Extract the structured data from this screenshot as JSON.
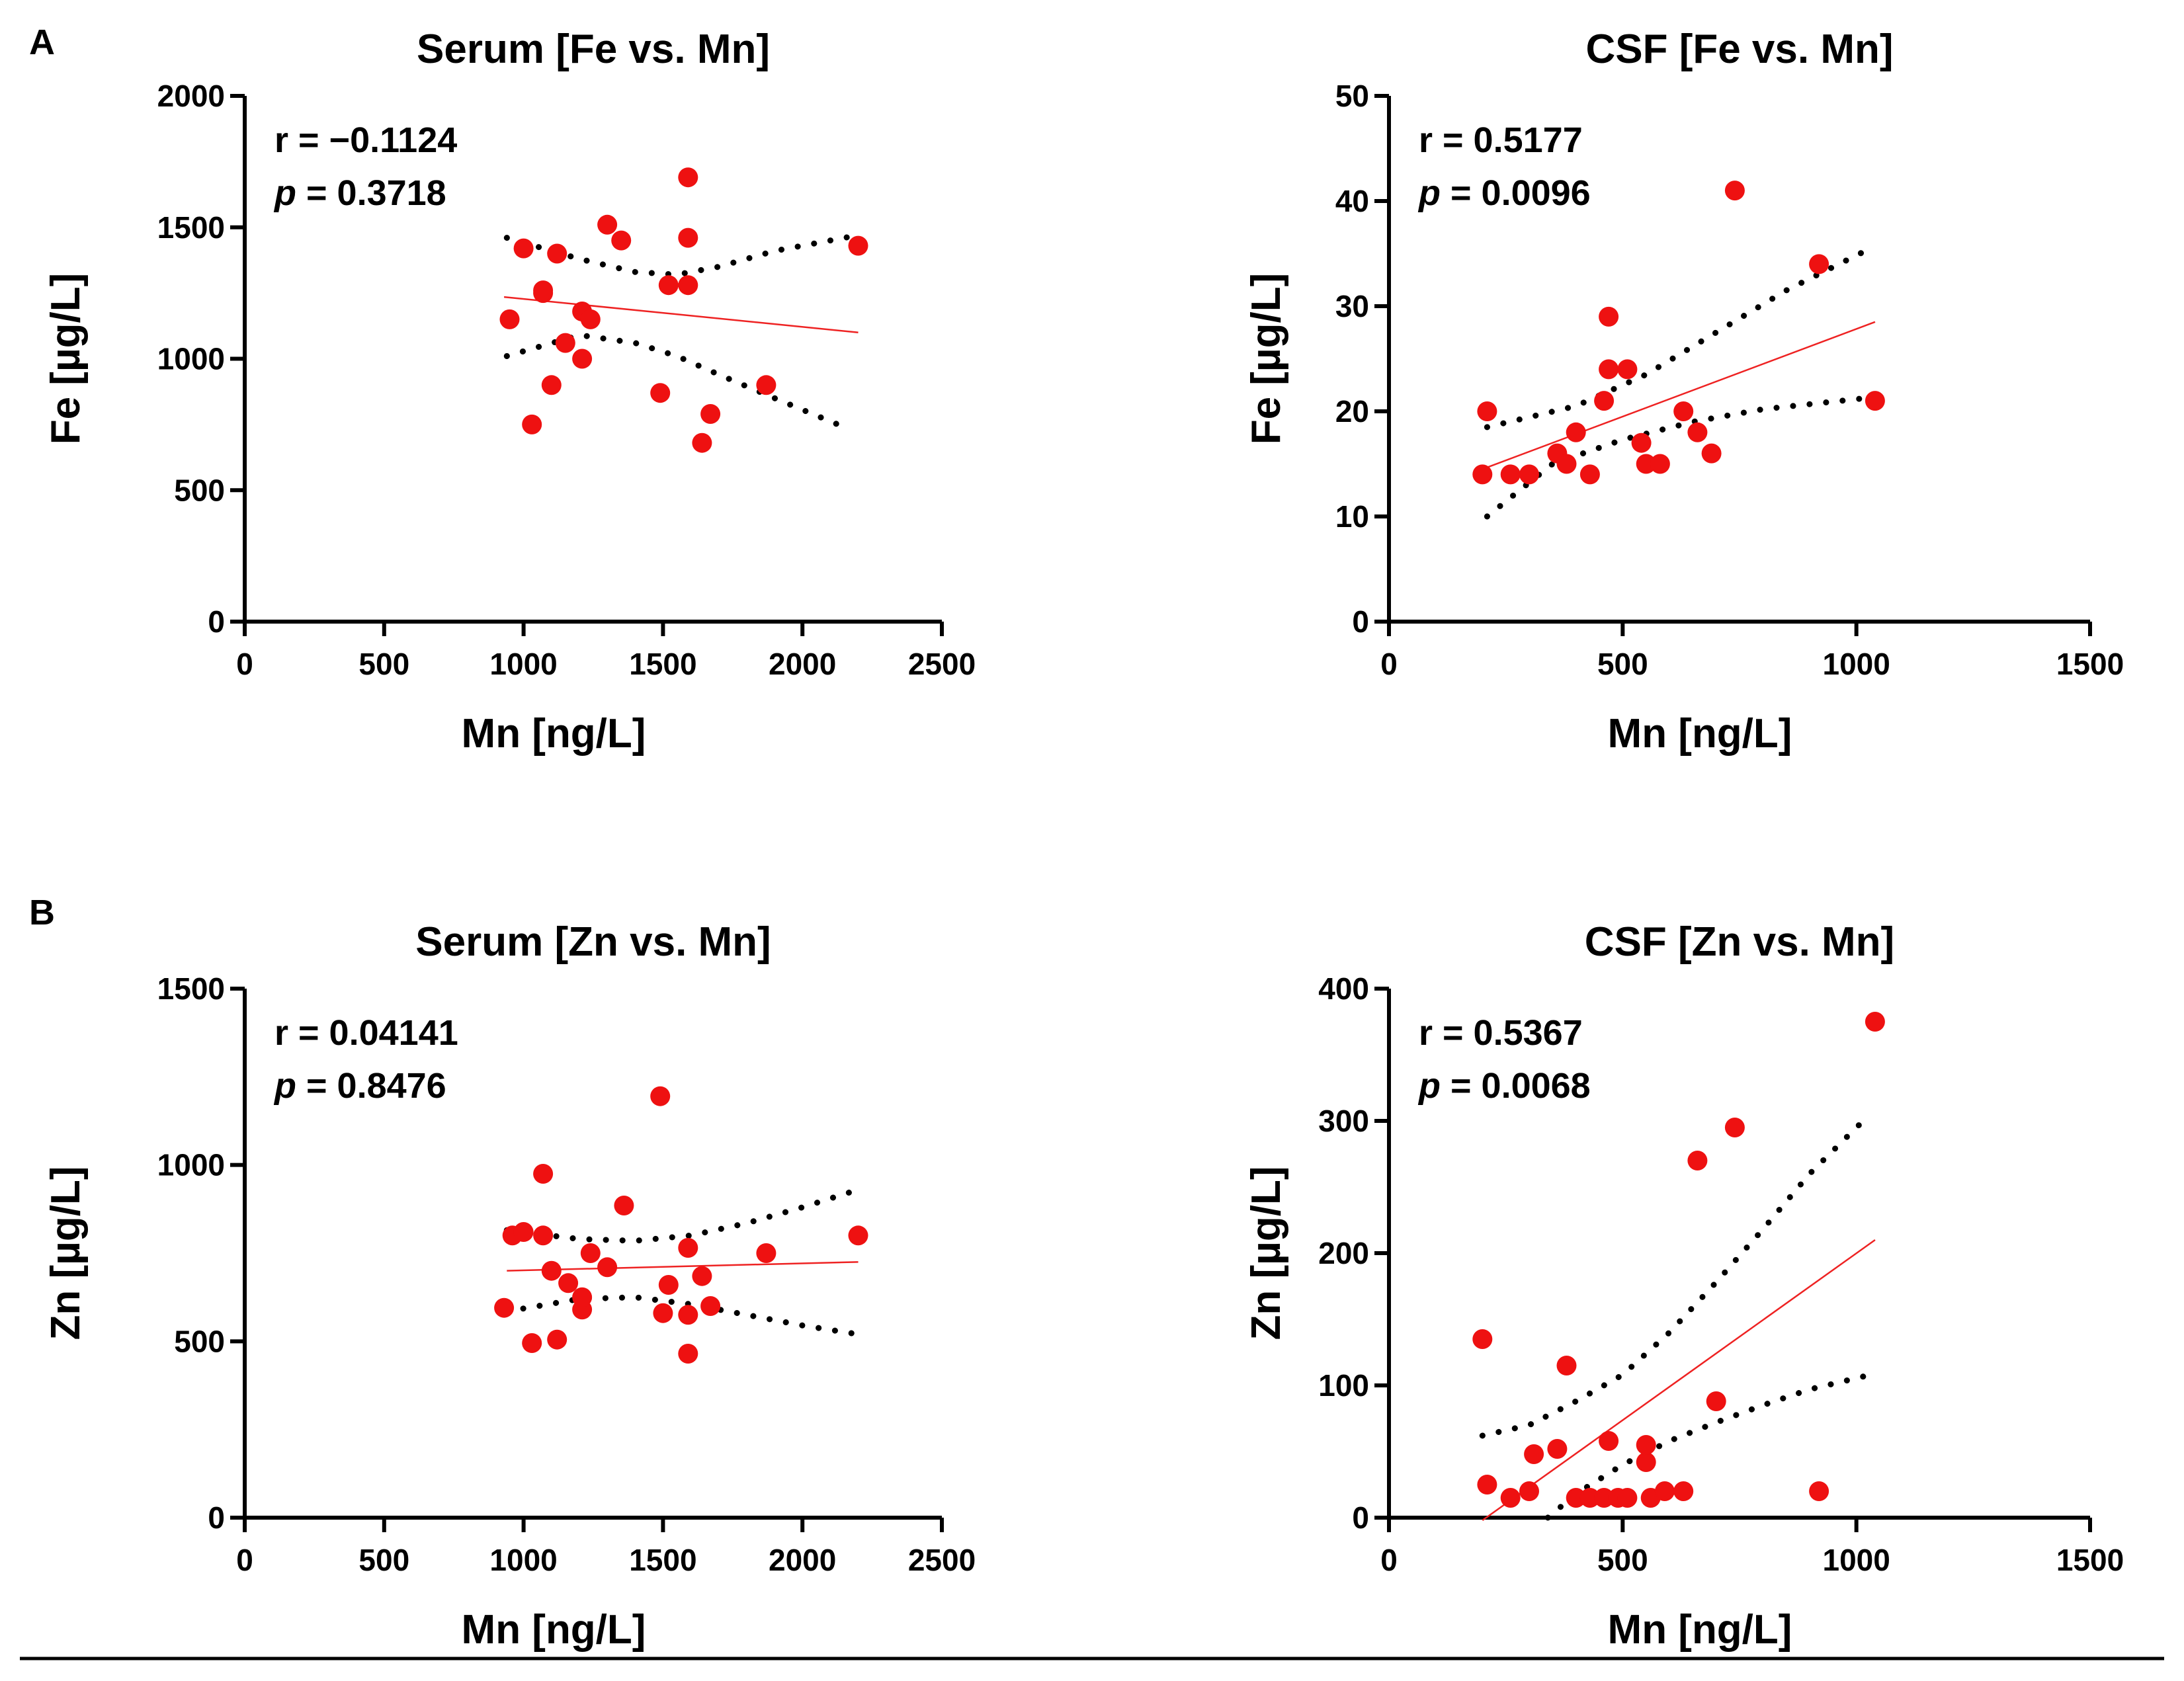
{
  "figure": {
    "panel_letters": [
      "A",
      "B"
    ],
    "accent_color": "#ee1111"
  },
  "chart_data": [
    {
      "type": "scatter",
      "title": "Serum [Fe vs. Mn]",
      "xlabel": "Mn [ng/L]",
      "ylabel": "Fe [µg/L]",
      "xlim": [
        0,
        2500
      ],
      "ylim": [
        0,
        2000
      ],
      "xticks": [
        0,
        500,
        1000,
        1500,
        2000,
        2500
      ],
      "yticks": [
        0,
        500,
        1000,
        1500,
        2000
      ],
      "stats": {
        "r_label": "r = −0.1124",
        "p_label": "p",
        "p_value": " = 0.3718"
      },
      "points": [
        [
          950,
          1150
        ],
        [
          1000,
          1420
        ],
        [
          1030,
          750
        ],
        [
          1070,
          1250
        ],
        [
          1070,
          1260
        ],
        [
          1100,
          900
        ],
        [
          1120,
          1400
        ],
        [
          1150,
          1060
        ],
        [
          1210,
          1180
        ],
        [
          1210,
          1000
        ],
        [
          1240,
          1150
        ],
        [
          1300,
          1510
        ],
        [
          1350,
          1450
        ],
        [
          1490,
          870
        ],
        [
          1520,
          1280
        ],
        [
          1590,
          1460
        ],
        [
          1590,
          1280
        ],
        [
          1590,
          1690
        ],
        [
          1640,
          680
        ],
        [
          1670,
          790
        ],
        [
          1870,
          900
        ],
        [
          2200,
          1430
        ]
      ],
      "fit": {
        "x": [
          930,
          2200
        ],
        "y": [
          1235,
          1100
        ]
      },
      "ci_upper": {
        "x": [
          940,
          1200,
          1400,
          1550,
          1700,
          1900,
          2200
        ],
        "y": [
          1460,
          1380,
          1330,
          1320,
          1350,
          1410,
          1470
        ]
      },
      "ci_lower": {
        "x": [
          940,
          1200,
          1400,
          1550,
          1700,
          1900,
          2150
        ],
        "y": [
          1010,
          1090,
          1060,
          1010,
          940,
          850,
          740
        ]
      }
    },
    {
      "type": "scatter",
      "title": "CSF [Fe vs. Mn]",
      "xlabel": "Mn [ng/L]",
      "ylabel": "Fe [µg/L]",
      "xlim": [
        0,
        1500
      ],
      "ylim": [
        0,
        50
      ],
      "xticks": [
        0,
        500,
        1000,
        1500
      ],
      "yticks": [
        0,
        10,
        20,
        30,
        40,
        50
      ],
      "stats": {
        "r_label": "r = 0.5177",
        "p_label": "p",
        "p_value": " = 0.0096"
      },
      "points": [
        [
          200,
          14
        ],
        [
          210,
          20
        ],
        [
          260,
          14
        ],
        [
          300,
          14
        ],
        [
          360,
          16
        ],
        [
          380,
          15
        ],
        [
          400,
          18
        ],
        [
          430,
          14
        ],
        [
          460,
          21
        ],
        [
          470,
          29
        ],
        [
          470,
          24
        ],
        [
          510,
          24
        ],
        [
          540,
          17
        ],
        [
          550,
          15
        ],
        [
          580,
          15
        ],
        [
          630,
          20
        ],
        [
          660,
          18
        ],
        [
          690,
          16
        ],
        [
          740,
          41
        ],
        [
          920,
          34
        ],
        [
          1040,
          21
        ]
      ],
      "fit": {
        "x": [
          200,
          1040
        ],
        "y": [
          14.5,
          28.5
        ]
      },
      "ci_upper": {
        "x": [
          210,
          400,
          550,
          700,
          850,
          1030
        ],
        "y": [
          18.5,
          20.5,
          23.5,
          27.5,
          31.5,
          35.5
        ]
      },
      "ci_lower": {
        "x": [
          210,
          350,
          500,
          650,
          800,
          1030
        ],
        "y": [
          10,
          15,
          17.3,
          19,
          20.2,
          21.3
        ]
      }
    },
    {
      "type": "scatter",
      "title": "Serum [Zn vs. Mn]",
      "xlabel": "Mn [ng/L]",
      "ylabel": "Zn [µg/L]",
      "xlim": [
        0,
        2500
      ],
      "ylim": [
        0,
        1500
      ],
      "xticks": [
        0,
        500,
        1000,
        1500,
        2000,
        2500
      ],
      "yticks": [
        0,
        500,
        1000,
        1500
      ],
      "stats": {
        "r_label": "r = 0.04141",
        "p_label": "p",
        "p_value": " = 0.8476"
      },
      "points": [
        [
          930,
          595
        ],
        [
          960,
          800
        ],
        [
          1000,
          810
        ],
        [
          1030,
          495
        ],
        [
          1070,
          800
        ],
        [
          1070,
          975
        ],
        [
          1100,
          700
        ],
        [
          1120,
          505
        ],
        [
          1160,
          665
        ],
        [
          1210,
          590
        ],
        [
          1210,
          625
        ],
        [
          1240,
          750
        ],
        [
          1300,
          710
        ],
        [
          1360,
          885
        ],
        [
          1490,
          1195
        ],
        [
          1500,
          580
        ],
        [
          1520,
          660
        ],
        [
          1590,
          765
        ],
        [
          1590,
          465
        ],
        [
          1590,
          575
        ],
        [
          1640,
          685
        ],
        [
          1670,
          600
        ],
        [
          1870,
          750
        ],
        [
          2200,
          800
        ]
      ],
      "fit": {
        "x": [
          940,
          2200
        ],
        "y": [
          700,
          725
        ]
      },
      "ci_upper": {
        "x": [
          940,
          1200,
          1400,
          1600,
          1800,
          2000,
          2200
        ],
        "y": [
          815,
          790,
          785,
          800,
          835,
          880,
          930
        ]
      },
      "ci_lower": {
        "x": [
          940,
          1200,
          1400,
          1600,
          1800,
          2000,
          2200
        ],
        "y": [
          585,
          620,
          625,
          605,
          575,
          545,
          520
        ]
      }
    },
    {
      "type": "scatter",
      "title": "CSF [Zn vs. Mn]",
      "xlabel": "Mn [ng/L]",
      "ylabel": "Zn [µg/L]",
      "xlim": [
        0,
        1500
      ],
      "ylim": [
        0,
        400
      ],
      "xticks": [
        0,
        500,
        1000,
        1500
      ],
      "yticks": [
        0,
        100,
        200,
        300,
        400
      ],
      "stats": {
        "r_label": "r = 0.5367",
        "p_label": "p",
        "p_value": " = 0.0068"
      },
      "points": [
        [
          200,
          135
        ],
        [
          210,
          25
        ],
        [
          260,
          15
        ],
        [
          300,
          20
        ],
        [
          310,
          48
        ],
        [
          360,
          52
        ],
        [
          380,
          115
        ],
        [
          400,
          15
        ],
        [
          430,
          15
        ],
        [
          460,
          15
        ],
        [
          470,
          58
        ],
        [
          490,
          15
        ],
        [
          510,
          15
        ],
        [
          550,
          42
        ],
        [
          550,
          55
        ],
        [
          560,
          15
        ],
        [
          590,
          20
        ],
        [
          630,
          20
        ],
        [
          660,
          270
        ],
        [
          700,
          88
        ],
        [
          740,
          295
        ],
        [
          920,
          20
        ],
        [
          1040,
          375
        ]
      ],
      "fit": {
        "x": [
          200,
          1040
        ],
        "y": [
          -2,
          210
        ]
      },
      "ci_upper": {
        "x": [
          200,
          300,
          400,
          500,
          600,
          700,
          800,
          900,
          1000,
          1030
        ],
        "y": [
          62,
          70,
          88,
          108,
          140,
          178,
          218,
          260,
          295,
          305
        ]
      },
      "ci_lower": {
        "x": [
          340,
          400,
          500,
          600,
          700,
          800,
          900,
          1030
        ],
        "y": [
          0,
          18,
          40,
          58,
          72,
          85,
          97,
          108
        ]
      }
    }
  ]
}
